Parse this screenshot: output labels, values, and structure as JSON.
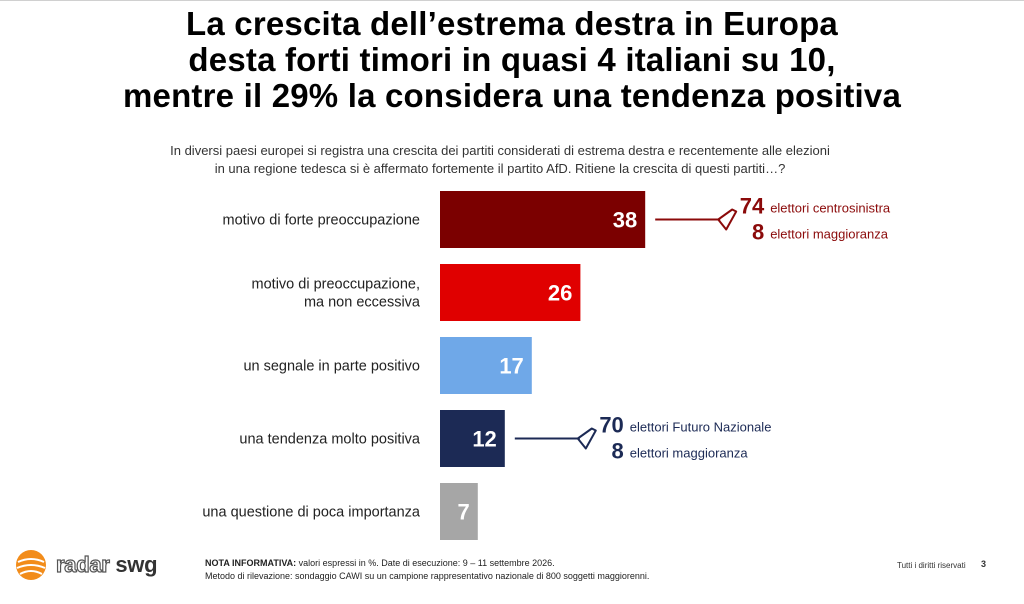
{
  "title_lines": [
    "La crescita dell’estrema destra in Europa",
    "desta forti timori in quasi 4 italiani su 10,",
    "mentre il 29% la considera una tendenza positiva"
  ],
  "question_lines": [
    "In diversi paesi europei si registra una crescita dei partiti considerati di estrema destra e recentemente alle elezioni",
    "in una regione tedesca si è affermato fortemente il partito AfD. Ritiene la crescita di questi partiti…?"
  ],
  "chart_data": {
    "type": "bar",
    "orientation": "horizontal",
    "unit": "%",
    "categories": [
      [
        "motivo di forte preoccupazione"
      ],
      [
        "motivo di preoccupazione,",
        "ma non eccessiva"
      ],
      [
        "un segnale in parte positivo"
      ],
      [
        "una tendenza molto positiva"
      ],
      [
        "una questione di poca importanza"
      ]
    ],
    "values": [
      38,
      26,
      17,
      12,
      7
    ],
    "colors": [
      "#7b0000",
      "#e00000",
      "#6fa8e8",
      "#1c2a55",
      "#a6a6a6"
    ],
    "annotations": [
      {
        "category_index": 0,
        "color": "#8b0a0a",
        "items": [
          {
            "value": 74,
            "label": "elettori centrosinistra"
          },
          {
            "value": 8,
            "label": "elettori maggioranza"
          }
        ]
      },
      {
        "category_index": 3,
        "color": "#1c2a55",
        "items": [
          {
            "value": 70,
            "label": "elettori Futuro Nazionale"
          },
          {
            "value": 8,
            "label": "elettori maggioranza"
          }
        ]
      }
    ]
  },
  "footer": {
    "logo_radar": "radar",
    "logo_swg": "swg",
    "note_label": "NOTA INFORMATIVA:",
    "note_text": "valori espressi in %. Date di esecuzione: 9 – 11 settembre 2026.",
    "note_method": "Metodo di rilevazione: sondaggio CAWI su un campione rappresentativo nazionale di 800 soggetti maggiorenni.",
    "rights": "Tutti i diritti riservati",
    "page_number": "3"
  },
  "colors": {
    "accent_dark_red": "#7b0000",
    "accent_red": "#e00000",
    "accent_light_blue": "#6fa8e8",
    "accent_navy": "#1c2a55",
    "accent_grey": "#a6a6a6",
    "logo_orange": "#f28c1a"
  }
}
